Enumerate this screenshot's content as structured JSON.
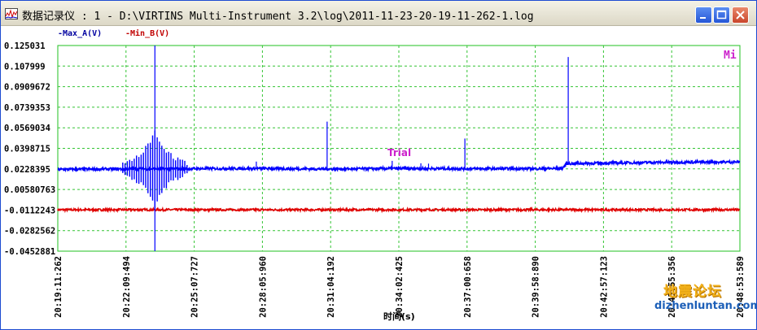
{
  "window": {
    "title": "数据记录仪 : 1 - D:\\VIRTINS Multi-Instrument 3.2\\log\\2011-11-23-20-19-11-262-1.log",
    "buttons": [
      "minimize",
      "maximize",
      "close"
    ],
    "icons": {
      "app": "logger-icon",
      "minimize": "minimize-icon",
      "maximize": "maximize-icon",
      "close": "close-icon"
    }
  },
  "chart_data": {
    "type": "line",
    "title": "",
    "xlabel": "时间(s)",
    "ylabel": "",
    "corner_label": "Mi",
    "annotation": "Trial",
    "legend": [
      "-Max_A(V)",
      "-Min_B(V)"
    ],
    "legend_placement": "top-left",
    "grid": true,
    "ylim": [
      -0.0452881,
      0.125031
    ],
    "yticks": [
      "0.125031",
      "0.107999",
      "0.0909672",
      "0.0739353",
      "0.0569034",
      "0.0398715",
      "0.0228395",
      "0.00580763",
      "-0.0112243",
      "-0.0282562",
      "-0.0452881"
    ],
    "xticks": [
      "20:19:11:262",
      "20:22:09:494",
      "20:25:07:727",
      "20:28:05:960",
      "20:31:04:192",
      "20:34:02:425",
      "20:37:00:658",
      "20:39:58:890",
      "20:42:57:123",
      "20:45:55:356",
      "20:48:53:589"
    ],
    "series": [
      {
        "name": "Max_A(V)",
        "color": "#0000ff",
        "baseline_points": [
          [
            "20:19:11:262",
            0.0224
          ],
          [
            "20:22:00",
            0.0228
          ],
          [
            "20:25:00",
            0.023
          ],
          [
            "20:28:00",
            0.0232
          ],
          [
            "20:31:00",
            0.0227
          ],
          [
            "20:34:00",
            0.0232
          ],
          [
            "20:37:00",
            0.023
          ],
          [
            "20:39:58",
            0.023
          ],
          [
            "20:41:10",
            0.0232
          ],
          [
            "20:41:20",
            0.0272
          ],
          [
            "20:45:00",
            0.0282
          ],
          [
            "20:48:53:589",
            0.0286
          ]
        ],
        "events": [
          {
            "time": "20:23:25",
            "max": 0.125031,
            "min": -0.0452881
          },
          {
            "time": "20:27:50",
            "max": 0.0289,
            "min": 0.0228
          },
          {
            "time": "20:30:55",
            "max": 0.062,
            "min": 0.0227
          },
          {
            "time": "20:33:45",
            "max": 0.0295,
            "min": 0.023
          },
          {
            "time": "20:35:00",
            "max": 0.0275,
            "min": 0.023
          },
          {
            "time": "20:35:20",
            "max": 0.0272,
            "min": 0.023
          },
          {
            "time": "20:36:55",
            "max": 0.048,
            "min": 0.0229
          },
          {
            "time": "20:41:25",
            "max": 0.1155,
            "min": 0.027
          }
        ]
      },
      {
        "name": "Min_B(V)",
        "color": "#e00000",
        "baseline_points": [
          [
            "20:19:11:262",
            -0.011
          ],
          [
            "20:34:00",
            -0.011
          ],
          [
            "20:48:53:589",
            -0.011
          ]
        ],
        "events": []
      }
    ]
  },
  "watermark": {
    "brand": "地震论坛",
    "url": "dizhenluntan.com"
  }
}
